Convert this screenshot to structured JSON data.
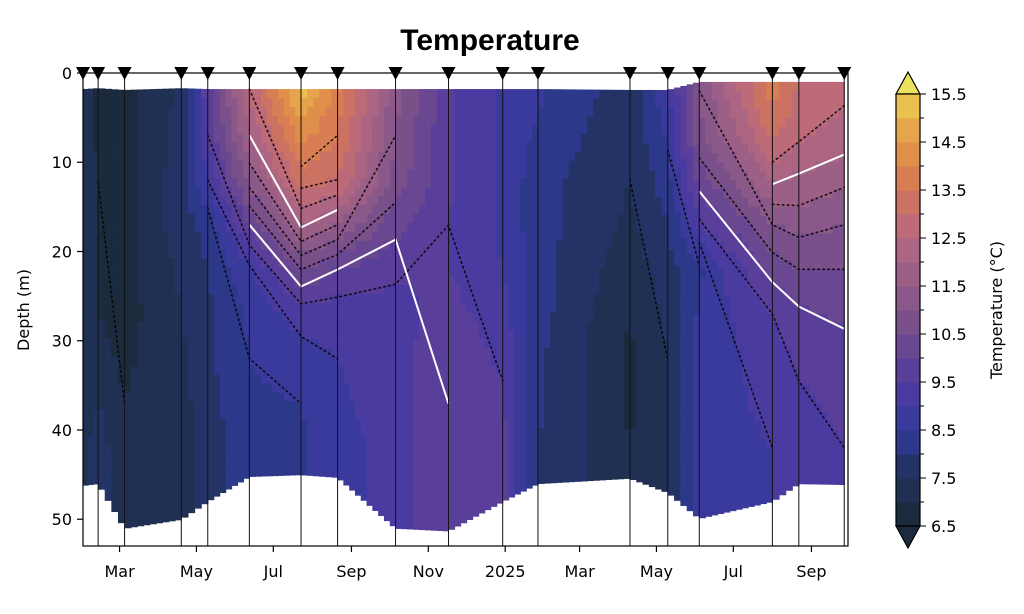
{
  "chart_data": {
    "type": "heatmap",
    "subtype": "filled-contour depth-time section",
    "title": "Temperature",
    "xlabel": "",
    "ylabel": "Depth (m)",
    "colorbar_label": "Temperature (°C)",
    "ylim": [
      0,
      53
    ],
    "y_inverted": true,
    "yticks": [
      0,
      10,
      20,
      30,
      40,
      50
    ],
    "x_start": "2024-02-01",
    "x_end": "2025-09-30",
    "xticks": [
      {
        "date": "2024-03-01",
        "label": "Mar"
      },
      {
        "date": "2024-05-01",
        "label": "May"
      },
      {
        "date": "2024-07-01",
        "label": "Jul"
      },
      {
        "date": "2024-09-01",
        "label": "Sep"
      },
      {
        "date": "2024-11-01",
        "label": "Nov"
      },
      {
        "date": "2025-01-01",
        "label": "2025"
      },
      {
        "date": "2025-03-01",
        "label": "Mar"
      },
      {
        "date": "2025-05-01",
        "label": "May"
      },
      {
        "date": "2025-07-01",
        "label": "Jul"
      },
      {
        "date": "2025-09-01",
        "label": "Sep"
      }
    ],
    "colorbar": {
      "vmin": 6.5,
      "vmax": 15.5,
      "step": 0.5,
      "ticks": [
        "6.5",
        "7.5",
        "8.5",
        "9.5",
        "10.5",
        "11.5",
        "12.5",
        "13.5",
        "14.5",
        "15.5"
      ],
      "extend": "both",
      "colors": [
        "#1b2a3c",
        "#1f3052",
        "#243366",
        "#2c3889",
        "#3a3a9c",
        "#4a3ba0",
        "#5a3f9a",
        "#6a4791",
        "#7a508b",
        "#8a5889",
        "#9c5f86",
        "#ac6582",
        "#bd6b78",
        "#cc7263",
        "#d97e52",
        "#e08f4a",
        "#e6a54a",
        "#eac04f",
        "#ede25d"
      ]
    },
    "isotherm_levels_highlighted": [
      8,
      10,
      12,
      14
    ],
    "stations": [
      {
        "date": "2024-02-01",
        "top_depth": 1.8,
        "bottom_depth": 46.2,
        "profile": [
          7.3,
          7.3,
          7.3,
          7.3,
          7.3,
          7.3,
          7.3,
          7.3,
          7.3,
          7.3
        ]
      },
      {
        "date": "2024-02-13",
        "top_depth": 1.7,
        "bottom_depth": 46.0,
        "profile": [
          6.9,
          6.9,
          7.0,
          7.0,
          7.0,
          7.0,
          7.2,
          7.5,
          7.8,
          8.0
        ]
      },
      {
        "date": "2024-03-05",
        "top_depth": 1.9,
        "bottom_depth": 51.0,
        "profile": [
          6.8,
          6.8,
          6.8,
          6.8,
          6.8,
          6.8,
          6.9,
          7.0,
          7.0,
          7.0
        ]
      },
      {
        "date": "2024-04-19",
        "top_depth": 1.7,
        "bottom_depth": 50.0,
        "profile": [
          7.6,
          7.7,
          7.8,
          7.8,
          7.6,
          7.5,
          7.4,
          7.3,
          7.2,
          7.2
        ]
      },
      {
        "date": "2024-05-10",
        "top_depth": 1.8,
        "bottom_depth": 48.0,
        "profile": [
          9.8,
          9.5,
          9.0,
          8.2,
          8.0,
          7.9,
          7.9,
          7.8,
          7.8,
          7.8
        ]
      },
      {
        "date": "2024-06-12",
        "top_depth": 1.8,
        "bottom_depth": 45.2,
        "profile": [
          12.5,
          12.0,
          11.2,
          10.0,
          8.9,
          8.6,
          8.5,
          8.4,
          8.3,
          8.3
        ]
      },
      {
        "date": "2024-07-23",
        "top_depth": 1.8,
        "bottom_depth": 45.0,
        "profile": [
          15.2,
          14.2,
          13.2,
          12.1,
          10.5,
          9.2,
          8.8,
          8.5,
          8.4,
          8.4
        ]
      },
      {
        "date": "2024-08-21",
        "top_depth": 1.8,
        "bottom_depth": 45.3,
        "profile": [
          13.8,
          13.5,
          13.0,
          11.5,
          10.0,
          9.2,
          9.0,
          8.9,
          8.8,
          8.8
        ]
      },
      {
        "date": "2024-10-06",
        "top_depth": 1.8,
        "bottom_depth": 51.0,
        "profile": [
          11.2,
          11.0,
          10.8,
          10.2,
          9.6,
          9.3,
          9.3,
          9.3,
          9.2,
          9.2
        ]
      },
      {
        "date": "2024-11-17",
        "top_depth": 1.8,
        "bottom_depth": 51.3,
        "profile": [
          9.6,
          9.6,
          9.6,
          9.5,
          9.5,
          9.7,
          9.9,
          10.0,
          10.0,
          10.0
        ]
      },
      {
        "date": "2024-12-30",
        "top_depth": 1.8,
        "bottom_depth": 48.0,
        "profile": [
          8.9,
          8.9,
          8.9,
          8.9,
          9.0,
          9.2,
          9.4,
          9.6,
          9.7,
          9.7
        ]
      },
      {
        "date": "2025-01-27",
        "top_depth": 1.8,
        "bottom_depth": 46.0,
        "profile": [
          8.6,
          8.4,
          8.2,
          8.2,
          8.2,
          8.2,
          8.1,
          8.1,
          8.0,
          8.0
        ]
      },
      {
        "date": "2025-04-10",
        "top_depth": 1.9,
        "bottom_depth": 45.4,
        "profile": [
          7.7,
          7.6,
          7.5,
          7.4,
          7.2,
          7.0,
          6.9,
          6.9,
          7.0,
          7.0
        ]
      },
      {
        "date": "2025-05-10",
        "top_depth": 1.9,
        "bottom_depth": 47.0,
        "profile": [
          8.9,
          8.6,
          8.3,
          8.0,
          7.8,
          7.6,
          7.5,
          7.5,
          7.5,
          7.5
        ]
      },
      {
        "date": "2025-06-04",
        "top_depth": 1.0,
        "bottom_depth": 49.9,
        "profile": [
          11.0,
          10.8,
          10.2,
          9.4,
          8.4,
          8.6,
          8.7,
          8.8,
          8.8,
          8.8
        ]
      },
      {
        "date": "2025-08-01",
        "top_depth": 1.0,
        "bottom_depth": 48.0,
        "profile": [
          13.8,
          13.1,
          12.1,
          11.0,
          10.2,
          9.5,
          9.2,
          9.1,
          9.0,
          9.0
        ]
      },
      {
        "date": "2025-08-22",
        "top_depth": 1.0,
        "bottom_depth": 46.0,
        "profile": [
          12.9,
          12.6,
          11.9,
          11.2,
          10.5,
          9.9,
          9.6,
          9.4,
          9.3,
          9.3
        ]
      },
      {
        "date": "2025-09-27",
        "top_depth": 1.0,
        "bottom_depth": 46.1,
        "profile": [
          12.6,
          12.3,
          11.6,
          11.0,
          10.5,
          10.1,
          9.8,
          9.6,
          9.5,
          9.5
        ]
      }
    ],
    "profile_depths": [
      2,
      7,
      12,
      17,
      22,
      27,
      32,
      37,
      42,
      47
    ],
    "station_marker": "downward triangle at surface",
    "grid": false
  }
}
